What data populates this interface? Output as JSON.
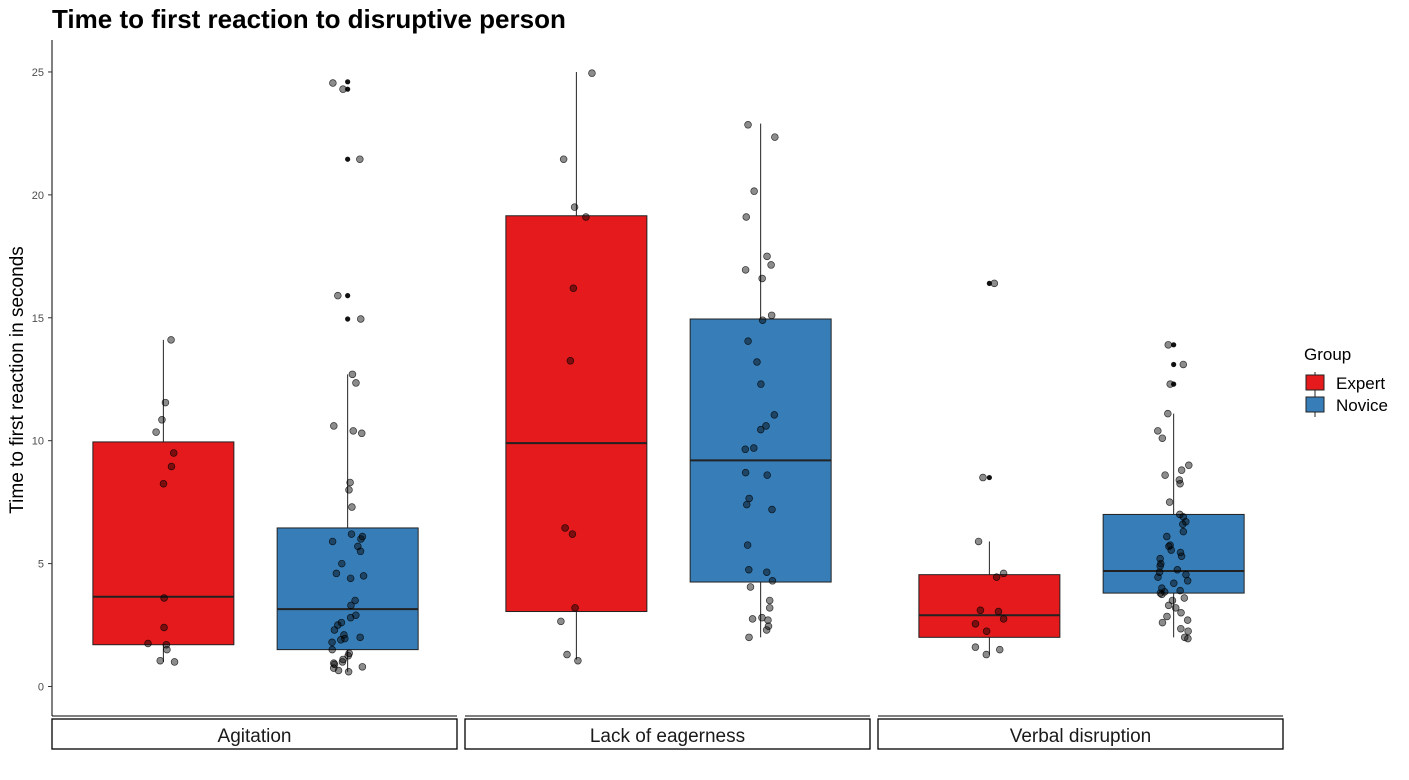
{
  "chart_data": {
    "type": "boxplot",
    "title": "Time to first reaction to disruptive person",
    "ylabel": "Time to first reaction in seconds",
    "xlabel": "",
    "ylim": [
      -1.2,
      26.3
    ],
    "yticks": [
      0,
      5,
      10,
      15,
      20,
      25
    ],
    "facets": [
      "Agitation",
      "Lack of eagerness",
      "Verbal disruption"
    ],
    "legend": {
      "title": "Group",
      "position": "right",
      "entries": [
        {
          "name": "Expert",
          "color": "#e41a1c"
        },
        {
          "name": "Novice",
          "color": "#377eb8"
        }
      ]
    },
    "boxes": [
      {
        "facet": "Agitation",
        "group": "Expert",
        "q1": 1.7,
        "median": 3.65,
        "q3": 9.95,
        "whisker_low": 1.0,
        "whisker_high": 14.1
      },
      {
        "facet": "Agitation",
        "group": "Novice",
        "q1": 1.5,
        "median": 3.15,
        "q3": 6.45,
        "whisker_low": 0.6,
        "whisker_high": 12.7
      },
      {
        "facet": "Lack of eagerness",
        "group": "Expert",
        "q1": 3.05,
        "median": 9.9,
        "q3": 19.15,
        "whisker_low": 1.1,
        "whisker_high": 25.0
      },
      {
        "facet": "Lack of eagerness",
        "group": "Novice",
        "q1": 4.25,
        "median": 9.2,
        "q3": 14.95,
        "whisker_low": 2.0,
        "whisker_high": 22.9
      },
      {
        "facet": "Verbal disruption",
        "group": "Expert",
        "q1": 2.0,
        "median": 2.9,
        "q3": 4.55,
        "whisker_low": 1.3,
        "whisker_high": 5.9
      },
      {
        "facet": "Verbal disruption",
        "group": "Novice",
        "q1": 3.8,
        "median": 4.7,
        "q3": 7.0,
        "whisker_low": 2.0,
        "whisker_high": 11.1
      }
    ],
    "outliers": [
      {
        "facet": "Agitation",
        "group": "Novice",
        "values": [
          14.95,
          15.9,
          21.45,
          24.3,
          24.6
        ]
      },
      {
        "facet": "Lack of eagerness",
        "group": "Expert",
        "values": []
      },
      {
        "facet": "Verbal disruption",
        "group": "Expert",
        "values": [
          8.5,
          16.4
        ]
      },
      {
        "facet": "Verbal disruption",
        "group": "Novice",
        "values": [
          12.3,
          13.1,
          13.9
        ]
      }
    ],
    "points": [
      {
        "facet": "Agitation",
        "group": "Expert",
        "values": [
          14.1,
          11.55,
          10.85,
          10.35,
          9.5,
          8.95,
          8.25,
          3.6,
          2.4,
          1.75,
          1.7,
          1.5,
          1.05,
          1.0
        ]
      },
      {
        "facet": "Agitation",
        "group": "Novice",
        "values": [
          24.55,
          24.3,
          21.45,
          15.9,
          14.95,
          12.7,
          12.35,
          10.6,
          10.4,
          10.3,
          8.3,
          8.0,
          7.3,
          6.2,
          6.1,
          6.0,
          5.9,
          5.7,
          5.5,
          5.0,
          4.6,
          4.5,
          4.4,
          3.5,
          3.3,
          2.9,
          2.8,
          2.6,
          2.5,
          2.3,
          2.1,
          2.0,
          1.95,
          1.9,
          1.8,
          1.5,
          1.35,
          1.25,
          1.1,
          1.0,
          0.95,
          0.9,
          0.8,
          0.75,
          0.65,
          0.6
        ]
      },
      {
        "facet": "Lack of eagerness",
        "group": "Expert",
        "values": [
          24.95,
          21.45,
          19.5,
          19.1,
          16.2,
          13.25,
          6.45,
          6.2,
          3.2,
          2.65,
          1.3,
          1.05
        ]
      },
      {
        "facet": "Lack of eagerness",
        "group": "Novice",
        "values": [
          22.85,
          22.35,
          20.15,
          19.1,
          17.5,
          17.15,
          16.95,
          16.6,
          15.1,
          14.9,
          14.05,
          13.2,
          12.3,
          11.05,
          10.6,
          10.45,
          9.7,
          9.65,
          8.7,
          8.6,
          7.65,
          7.4,
          7.2,
          5.75,
          4.75,
          4.65,
          4.3,
          4.05,
          3.5,
          3.2,
          2.8,
          2.75,
          2.7,
          2.45,
          2.3,
          2.0
        ]
      },
      {
        "facet": "Verbal disruption",
        "group": "Expert",
        "values": [
          16.4,
          8.5,
          5.9,
          4.6,
          4.45,
          3.1,
          3.05,
          2.75,
          2.55,
          2.25,
          1.6,
          1.5,
          1.3
        ]
      },
      {
        "facet": "Verbal disruption",
        "group": "Novice",
        "values": [
          13.9,
          13.1,
          12.3,
          11.1,
          10.4,
          10.1,
          9.0,
          8.8,
          8.6,
          8.4,
          8.25,
          7.5,
          7.0,
          6.9,
          6.7,
          6.6,
          6.3,
          6.1,
          5.75,
          5.7,
          5.55,
          5.45,
          5.3,
          5.2,
          5.0,
          4.9,
          4.75,
          4.65,
          4.55,
          4.45,
          4.3,
          4.2,
          4.0,
          3.9,
          3.85,
          3.8,
          3.75,
          3.6,
          3.5,
          3.3,
          3.2,
          3.0,
          2.85,
          2.7,
          2.6,
          2.35,
          2.25,
          2.0,
          1.95
        ]
      }
    ]
  }
}
